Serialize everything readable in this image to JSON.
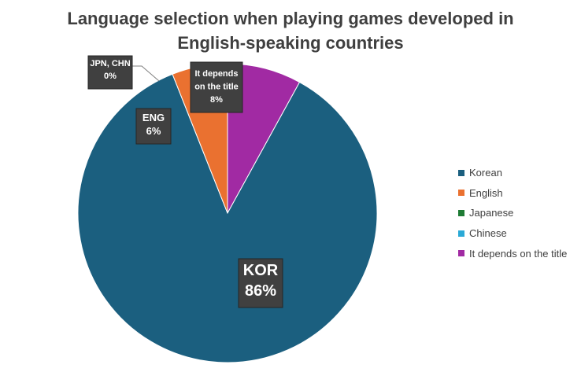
{
  "chart_data": {
    "type": "pie",
    "title_lines": [
      "Language selection when playing games developed in",
      "English-speaking countries"
    ],
    "categories": [
      "Korean",
      "English",
      "Japanese",
      "Chinese",
      "It depends on the title"
    ],
    "values": [
      86,
      6,
      0,
      0,
      8
    ],
    "colors": [
      "#1b5f7f",
      "#ea7130",
      "#1e7b34",
      "#2aa9d6",
      "#a12aa3"
    ],
    "slice_order_clockwise_from_top": [
      "It depends on the title",
      "Korean",
      "English",
      "Japanese",
      "Chinese"
    ],
    "data_labels": [
      {
        "series": "Korean",
        "lines": [
          "KOR",
          "86%"
        ]
      },
      {
        "series": "English",
        "lines": [
          "ENG",
          "6%"
        ]
      },
      {
        "series": "Japanese/Chinese",
        "lines": [
          "JPN, CHN",
          "0%"
        ]
      },
      {
        "series": "It depends on the title",
        "lines": [
          "It depends",
          "on the title",
          "8%"
        ]
      }
    ],
    "legend": {
      "position": "right",
      "entries": [
        "Korean",
        "English",
        "Japanese",
        "Chinese",
        "It depends on the title"
      ]
    },
    "slice_border_color": "#ffffff"
  }
}
